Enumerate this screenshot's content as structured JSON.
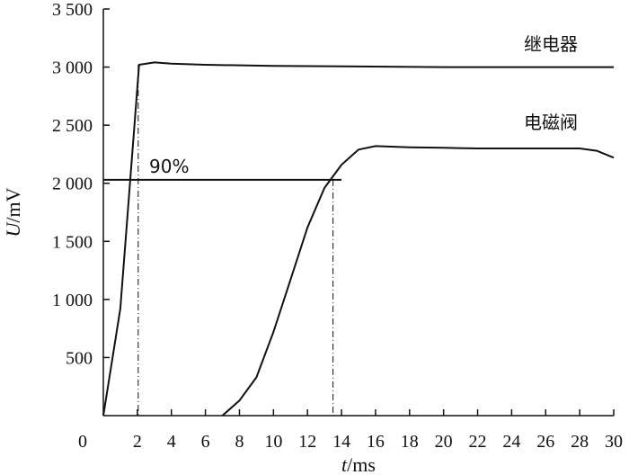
{
  "chart_data": {
    "type": "line",
    "title": "",
    "xlabel": {
      "italic": "t",
      "rest": "/ms"
    },
    "ylabel": {
      "italic": "U",
      "rest": "/mV"
    },
    "xlim": [
      0,
      30
    ],
    "ylim": [
      0,
      3500
    ],
    "x_ticks": [
      0,
      2,
      4,
      6,
      8,
      10,
      12,
      14,
      16,
      18,
      20,
      22,
      24,
      26,
      28,
      30
    ],
    "x_tick_labels": [
      "0",
      "2",
      "4",
      "6",
      "8",
      "10",
      "12",
      "14",
      "16",
      "18",
      "20",
      "22",
      "24",
      "26",
      "28",
      "30"
    ],
    "y_ticks": [
      500,
      1000,
      1500,
      2000,
      2500,
      3000,
      3500
    ],
    "y_tick_labels": [
      "500",
      "1 000",
      "1 500",
      "2 000",
      "2 500",
      "3 000",
      "3 500"
    ],
    "grid": false,
    "series": [
      {
        "name": "继电器",
        "x": [
          0,
          1,
          2.1,
          3,
          4,
          6,
          10,
          15,
          20,
          25,
          30
        ],
        "y": [
          0,
          920,
          3020,
          3040,
          3030,
          3020,
          3010,
          3005,
          3000,
          3000,
          3000
        ]
      },
      {
        "name": "电磁阀",
        "x": [
          7,
          8,
          9,
          10,
          11,
          12,
          13,
          13.5,
          14,
          15,
          16,
          18,
          20,
          22,
          24,
          26,
          28,
          29,
          30
        ],
        "y": [
          0,
          130,
          330,
          720,
          1170,
          1620,
          1960,
          2060,
          2160,
          2290,
          2320,
          2310,
          2305,
          2300,
          2300,
          2300,
          2300,
          2280,
          2220
        ]
      }
    ],
    "reference_line": {
      "label": "90%",
      "y": 2030,
      "x_from": 0,
      "x_to": 14
    },
    "guides": [
      {
        "x": 2.05,
        "y_top": 3020
      },
      {
        "x": 13.5,
        "y_top": 2030
      }
    ]
  }
}
